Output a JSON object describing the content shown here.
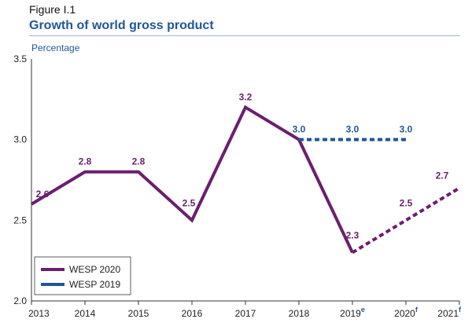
{
  "figure": {
    "label": "Figure I.1",
    "title": "Growth of world gross product"
  },
  "chart_data": {
    "type": "line",
    "title": "Growth of world gross product",
    "ylabel": "Percentage",
    "xlabel": "",
    "ylim": [
      2.0,
      3.5
    ],
    "yticks": [
      "2.0",
      "2.5",
      "3.0",
      "3.5"
    ],
    "categories": [
      "2013",
      "2014",
      "2015",
      "2016",
      "2017",
      "2018",
      "2019",
      "2020",
      "2021"
    ],
    "category_superscripts": [
      "",
      "",
      "",
      "",
      "",
      "",
      "e",
      "f",
      "f"
    ],
    "grid": false,
    "legend_position": "bottom-left",
    "series": [
      {
        "name": "WESP 2020",
        "color": "#6b1f6e",
        "values": [
          2.6,
          2.8,
          2.8,
          2.5,
          3.2,
          3.0,
          2.3,
          2.5,
          2.7
        ],
        "labels": [
          "2.6",
          "2.8",
          "2.8",
          "2.5",
          "3.2",
          "",
          "2.3",
          "2.5",
          "2.7"
        ],
        "solid_until_index": 6
      },
      {
        "name": "WESP 2019",
        "color": "#1f5796",
        "values": [
          null,
          null,
          null,
          null,
          null,
          3.0,
          3.0,
          3.0,
          null
        ],
        "labels": [
          "",
          "",
          "",
          "",
          "",
          "3.0",
          "3.0",
          "3.0",
          ""
        ],
        "solid_until_index": 5
      }
    ]
  }
}
